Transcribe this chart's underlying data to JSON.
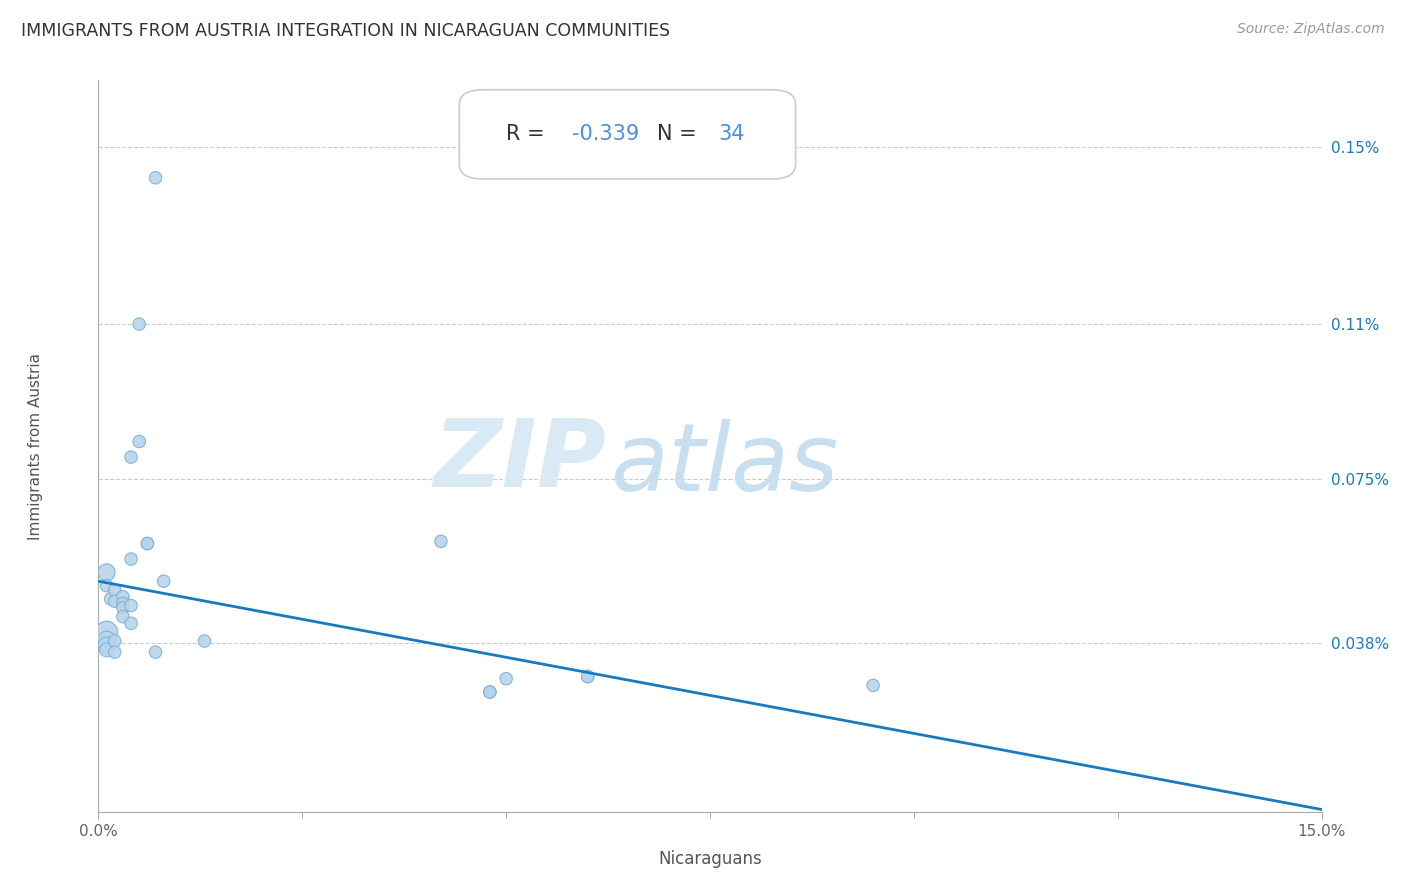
{
  "title": "IMMIGRANTS FROM AUSTRIA INTEGRATION IN NICARAGUAN COMMUNITIES",
  "source": "Source: ZipAtlas.com",
  "xlabel": "Nicaraguans",
  "ylabel": "Immigrants from Austria",
  "R": -0.339,
  "N": 34,
  "x_min": 0.0,
  "x_max": 0.15,
  "y_min": 0.0,
  "y_max": 0.165,
  "x_ticks": [
    0.0,
    0.15
  ],
  "x_tick_labels": [
    "0.0%",
    "15.0%"
  ],
  "y_ticks": [
    0.0,
    0.00038,
    0.00075,
    0.0011,
    0.0015
  ],
  "y_tick_labels": [
    "",
    "0.038%",
    "0.075%",
    "0.11%",
    "0.15%"
  ],
  "scatter_color": "#b8d4ea",
  "scatter_edge_color": "#7ab0d8",
  "line_color": "#1a7abf",
  "background_color": "#ffffff",
  "line_x0": 0.0,
  "line_y0": 0.00052,
  "line_x1": 0.15,
  "line_y1": 5e-06,
  "points": [
    [
      0.001,
      0.00054
    ],
    [
      0.001,
      0.00051
    ],
    [
      0.001,
      0.000405
    ],
    [
      0.001,
      0.000385
    ],
    [
      0.001,
      0.000375
    ],
    [
      0.001,
      0.000365
    ],
    [
      0.0015,
      0.00048
    ],
    [
      0.002,
      0.0005
    ],
    [
      0.002,
      0.000475
    ],
    [
      0.002,
      0.000385
    ],
    [
      0.002,
      0.00036
    ],
    [
      0.003,
      0.000485
    ],
    [
      0.003,
      0.00047
    ],
    [
      0.003,
      0.00046
    ],
    [
      0.003,
      0.00044
    ],
    [
      0.004,
      0.0008
    ],
    [
      0.004,
      0.00057
    ],
    [
      0.004,
      0.000465
    ],
    [
      0.004,
      0.000425
    ],
    [
      0.005,
      0.0011
    ],
    [
      0.005,
      0.000835
    ],
    [
      0.006,
      0.000605
    ],
    [
      0.006,
      0.000605
    ],
    [
      0.007,
      0.00143
    ],
    [
      0.007,
      0.00036
    ],
    [
      0.008,
      0.00052
    ],
    [
      0.013,
      0.000385
    ],
    [
      0.042,
      0.00061
    ],
    [
      0.048,
      0.00027
    ],
    [
      0.048,
      0.00027
    ],
    [
      0.05,
      0.0003
    ],
    [
      0.06,
      0.000305
    ],
    [
      0.06,
      0.000305
    ],
    [
      0.095,
      0.000285
    ]
  ],
  "point_sizes": [
    150,
    80,
    250,
    200,
    150,
    100,
    80,
    80,
    80,
    80,
    80,
    80,
    80,
    80,
    80,
    80,
    80,
    80,
    80,
    80,
    80,
    80,
    80,
    80,
    80,
    80,
    80,
    80,
    80,
    80,
    80,
    80,
    80,
    80
  ]
}
